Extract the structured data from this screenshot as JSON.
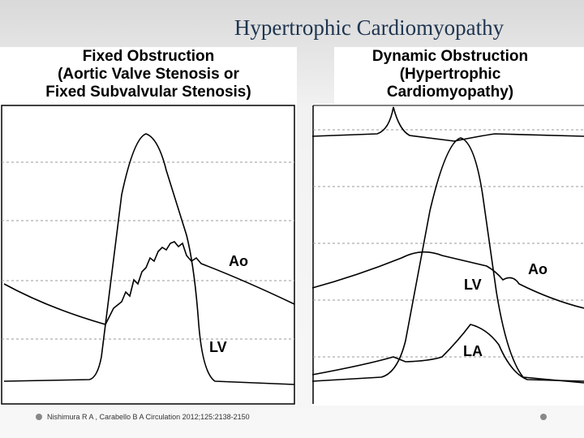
{
  "title": "Hypertrophic Cardiomyopathy",
  "left_panel": {
    "heading": [
      "Fixed Obstruction",
      "(Aortic Valve Stenosis or",
      "Fixed Subvalvular Stenosis)"
    ],
    "labels": [
      "Ao",
      "LV"
    ]
  },
  "right_panel": {
    "heading": [
      "Dynamic Obstruction",
      "(Hypertrophic",
      "Cardiomyopathy)"
    ],
    "labels": [
      "Ao",
      "LV",
      "LA"
    ]
  },
  "citation": "Nishimura R A , Carabello B A Circulation 2012;125:2138-2150"
}
